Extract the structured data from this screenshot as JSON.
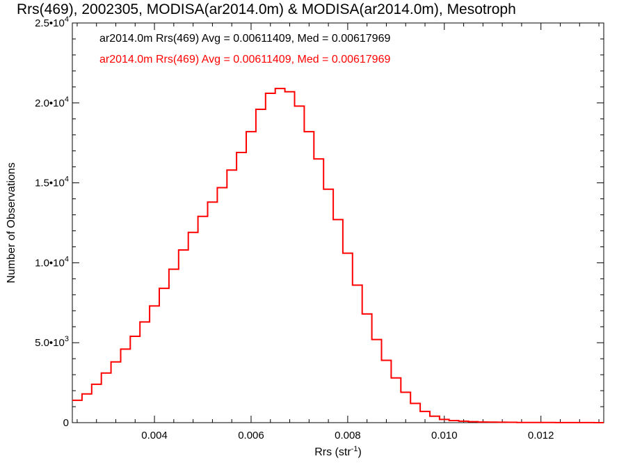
{
  "chart_data": {
    "type": "line",
    "title": "Rrs(469), 2002305, MODISA(ar2014.0m) & MODISA(ar2014.0m), Mesotroph",
    "xlabel": "Rrs (str",
    "xlabel_sup": "-1",
    "xlabel_close": ")",
    "ylabel": "Number of Observations",
    "xlim": [
      0.0023,
      0.0133
    ],
    "ylim": [
      0,
      25000
    ],
    "x_ticks": [
      {
        "value": 0.004,
        "label": "0.004"
      },
      {
        "value": 0.006,
        "label": "0.006"
      },
      {
        "value": 0.008,
        "label": "0.008"
      },
      {
        "value": 0.01,
        "label": "0.010"
      },
      {
        "value": 0.012,
        "label": "0.012"
      }
    ],
    "y_ticks": [
      {
        "value": 0,
        "mantissa": "0",
        "exponent": ""
      },
      {
        "value": 5000,
        "mantissa": "5.0•10",
        "exponent": "3"
      },
      {
        "value": 10000,
        "mantissa": "1.0•10",
        "exponent": "4"
      },
      {
        "value": 15000,
        "mantissa": "1.5•10",
        "exponent": "4"
      },
      {
        "value": 20000,
        "mantissa": "2.0•10",
        "exponent": "4"
      },
      {
        "value": 25000,
        "mantissa": "2.5•10",
        "exponent": "4"
      }
    ],
    "legend": [
      {
        "text": "ar2014.0m Rrs(469) Avg = 0.00611409, Med = 0.00617969",
        "color": "#000000"
      },
      {
        "text": "ar2014.0m Rrs(469) Avg = 0.00611409, Med = 0.00617969",
        "color": "#ff0000"
      }
    ],
    "legend_position": "top-left",
    "grid": false,
    "series": [
      {
        "color": "#ff0000",
        "style": "step",
        "x": [
          0.0023,
          0.0025,
          0.0027,
          0.0029,
          0.0031,
          0.0033,
          0.0035,
          0.0037,
          0.0039,
          0.0041,
          0.0043,
          0.0045,
          0.0047,
          0.0049,
          0.0051,
          0.0053,
          0.0055,
          0.0057,
          0.0059,
          0.0061,
          0.0063,
          0.0065,
          0.0067,
          0.0069,
          0.0071,
          0.0073,
          0.0075,
          0.0077,
          0.0079,
          0.0081,
          0.0083,
          0.0085,
          0.0087,
          0.0089,
          0.0091,
          0.0093,
          0.0095,
          0.0097,
          0.0099,
          0.0101,
          0.0103,
          0.0105,
          0.0107,
          0.0109,
          0.0111,
          0.0113,
          0.0115,
          0.0117,
          0.0119,
          0.0121,
          0.0123,
          0.0125,
          0.0127,
          0.0129,
          0.0131,
          0.0133
        ],
        "y": [
          1400,
          1800,
          2400,
          3100,
          3800,
          4600,
          5400,
          6300,
          7300,
          8400,
          9600,
          10800,
          11900,
          12900,
          13800,
          14700,
          15800,
          16900,
          18200,
          19600,
          20600,
          20900,
          20700,
          19800,
          18200,
          16500,
          14600,
          12700,
          10600,
          8600,
          6800,
          5200,
          3900,
          2800,
          1900,
          1200,
          700,
          400,
          200,
          130,
          90,
          60,
          40,
          30,
          25,
          20,
          15,
          10,
          10,
          8,
          6,
          5,
          4,
          3,
          2,
          2
        ]
      }
    ]
  }
}
